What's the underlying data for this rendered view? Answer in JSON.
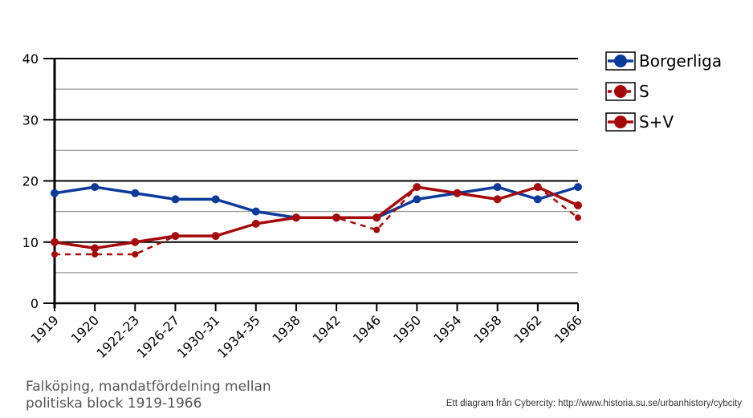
{
  "chart_data": {
    "type": "line",
    "categories": [
      "1919",
      "1920",
      "1922-23",
      "1926-27",
      "1930-31",
      "1934-35",
      "1938",
      "1942",
      "1946",
      "1950",
      "1954",
      "1958",
      "1962",
      "1966"
    ],
    "series": [
      {
        "name": "Borgerliga",
        "color": "#0b3a99",
        "style": "solid",
        "values": [
          18,
          19,
          18,
          17,
          17,
          15,
          14,
          14,
          14,
          17,
          18,
          19,
          17,
          19
        ]
      },
      {
        "name": "S",
        "color": "#a50a0a",
        "style": "dashed",
        "values": [
          8,
          8,
          8,
          11,
          11,
          13,
          14,
          14,
          12,
          19,
          18,
          17,
          19,
          14
        ]
      },
      {
        "name": "S+V",
        "color": "#a50a0a",
        "style": "solid",
        "values": [
          10,
          9,
          10,
          11,
          11,
          13,
          14,
          14,
          14,
          19,
          18,
          17,
          19,
          16
        ]
      }
    ],
    "ylim": [
      0,
      40
    ],
    "yticks": [
      0,
      10,
      20,
      30,
      40
    ],
    "grid": true,
    "legend": "top-right",
    "title": "Falköping, mandatfördelning  mellan\npolitiska block 1919-1966"
  },
  "credit": "Ett diagram från Cybercity: http://www.historia.su.se/urbanhistory/cybcity"
}
